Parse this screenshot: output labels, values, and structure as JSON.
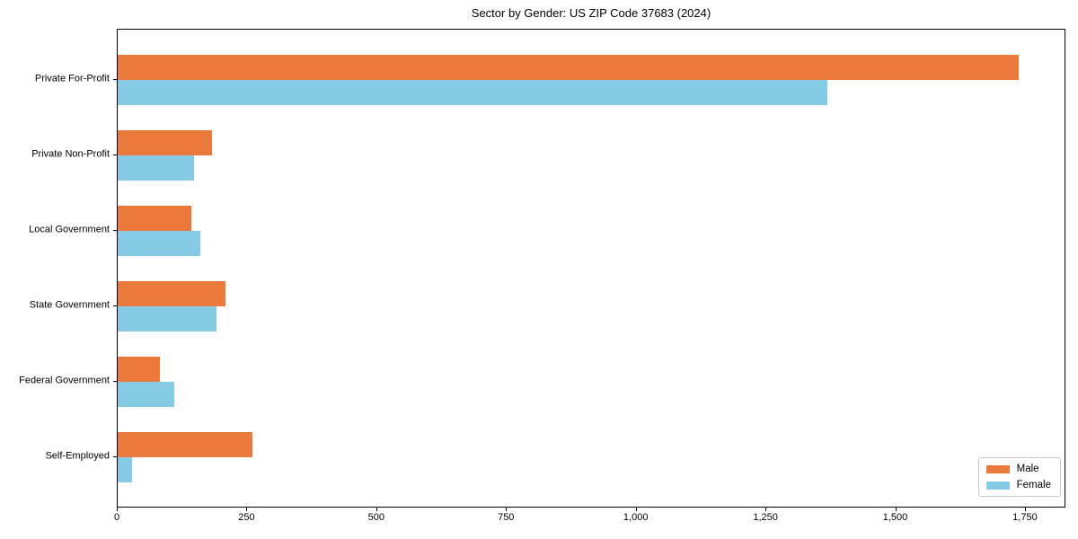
{
  "title": "Sector by Gender: US ZIP Code 37683 (2024)",
  "chart_data": {
    "type": "bar",
    "orientation": "horizontal",
    "title": "Sector by Gender: US ZIP Code 37683 (2024)",
    "xlabel": "",
    "ylabel": "",
    "categories": [
      "Private For-Profit",
      "Private Non-Profit",
      "Local Government",
      "State Government",
      "Federal Government",
      "Self-Employed"
    ],
    "series": [
      {
        "name": "Male",
        "color": "#ea7a3c",
        "values": [
          1740,
          182,
          143,
          208,
          82,
          260
        ]
      },
      {
        "name": "Female",
        "color": "#85cbe5",
        "values": [
          1370,
          147,
          160,
          190,
          110,
          28
        ]
      }
    ],
    "xlim": [
      0,
      1828
    ],
    "xticks": [
      0,
      250,
      500,
      750,
      1000,
      1250,
      1500,
      1750
    ],
    "xtick_labels": [
      "0",
      "250",
      "500",
      "750",
      "1,000",
      "1,250",
      "1,500",
      "1,750"
    ],
    "grid": false,
    "legend_position": "lower right"
  }
}
